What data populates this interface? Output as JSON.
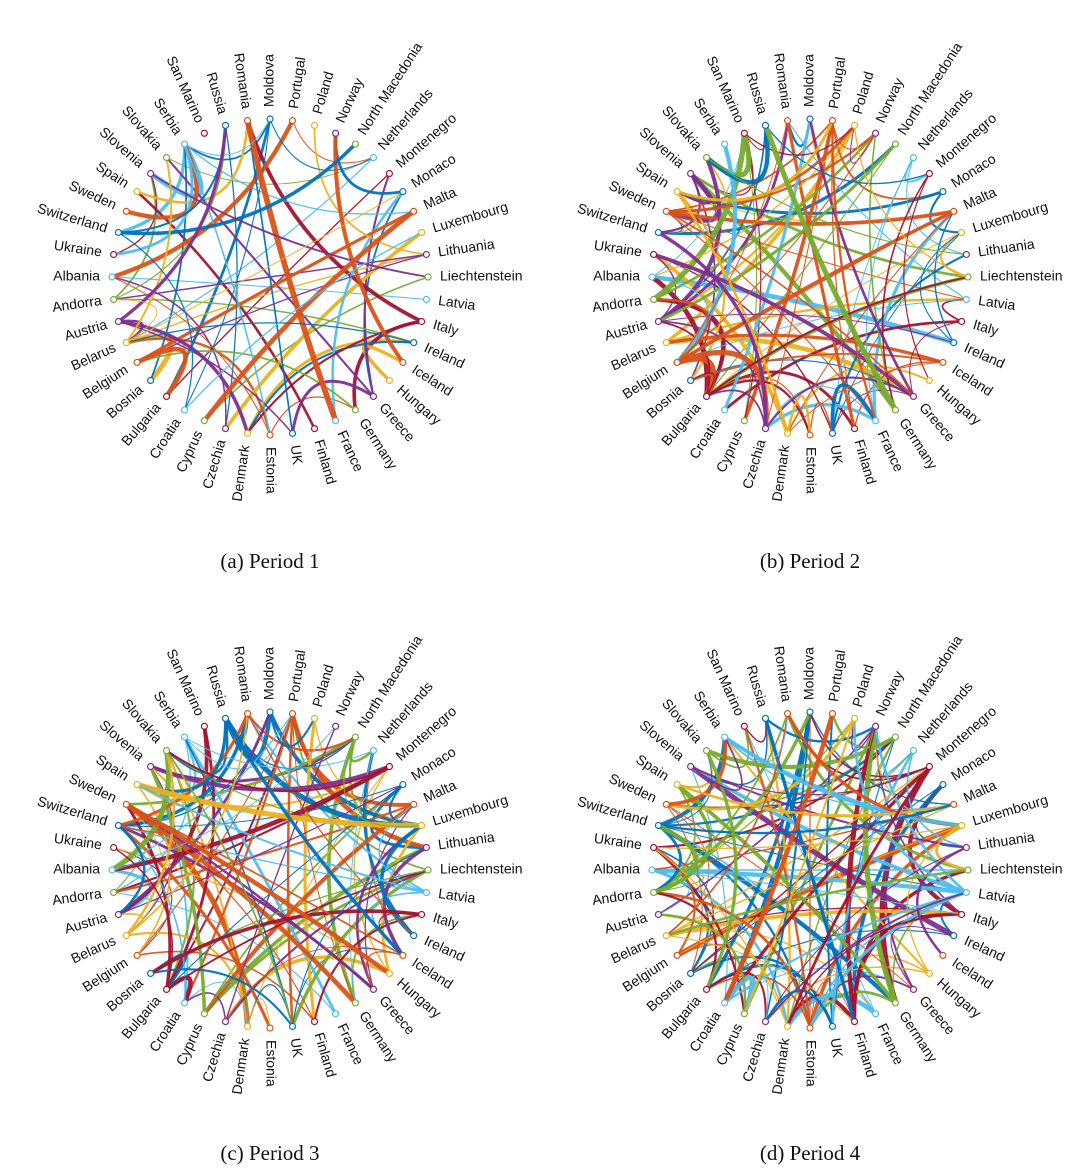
{
  "nodes": [
    "Moldova",
    "Portugal",
    "Poland",
    "Norway",
    "North Macedonia",
    "Netherlands",
    "Montenegro",
    "Monaco",
    "Malta",
    "Luxembourg",
    "Lithuania",
    "Liechtenstein",
    "Latvia",
    "Italy",
    "Ireland",
    "Iceland",
    "Hungary",
    "Greece",
    "Germany",
    "France",
    "Finland",
    "UK",
    "Estonia",
    "Denmark",
    "Czechia",
    "Cyprus",
    "Croatia",
    "Bulgaria",
    "Bosnia",
    "Belgium",
    "Belarus",
    "Austria",
    "Andorra",
    "Albania",
    "Ukraine",
    "Switzerland",
    "Sweden",
    "Spain",
    "Slovenia",
    "Slovakia",
    "Serbia",
    "San Marino",
    "Russia",
    "Romania"
  ],
  "panels": [
    {
      "caption": "(a) Period 1"
    },
    {
      "caption": "(b) Period 2"
    },
    {
      "caption": "(c) Period 3"
    },
    {
      "caption": "(d) Period 4"
    }
  ]
}
